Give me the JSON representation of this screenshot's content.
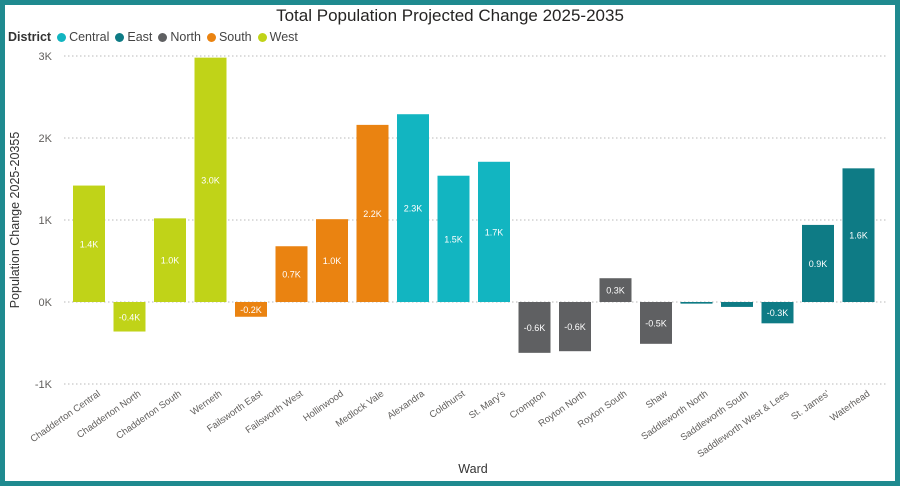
{
  "chart_data": {
    "type": "bar",
    "title": "Total Population Projected Change 2025-2035",
    "xlabel": "Ward",
    "ylabel": "Population Change 2025-20355",
    "ylim": [
      -1000,
      3000
    ],
    "yticks": [
      -1000,
      0,
      1000,
      2000,
      3000
    ],
    "ytick_labels": [
      "-1K",
      "0K",
      "1K",
      "2K",
      "3K"
    ],
    "grid": true,
    "legend": {
      "title": "District",
      "position": "top-left",
      "entries": [
        {
          "name": "Central",
          "color": "#12b5c1"
        },
        {
          "name": "East",
          "color": "#0e7b85"
        },
        {
          "name": "North",
          "color": "#5f6062"
        },
        {
          "name": "South",
          "color": "#ea8311"
        },
        {
          "name": "West",
          "color": "#c0d318"
        }
      ]
    },
    "categories": [
      "Chadderton Central",
      "Chadderton North",
      "Chadderton South",
      "Werneth",
      "Failsworth East",
      "Failsworth West",
      "Hollinwood",
      "Medlock Vale",
      "Alexandra",
      "Coldhurst",
      "St. Mary's",
      "Crompton",
      "Royton North",
      "Royton South",
      "Shaw",
      "Saddleworth North",
      "Saddleworth South",
      "Saddleworth West & Lees",
      "St. James'",
      "Waterhead"
    ],
    "district": [
      "West",
      "West",
      "West",
      "West",
      "South",
      "South",
      "South",
      "South",
      "Central",
      "Central",
      "Central",
      "North",
      "North",
      "North",
      "North",
      "East",
      "East",
      "East",
      "East",
      "East"
    ],
    "values": [
      1420,
      -360,
      1020,
      2980,
      -180,
      680,
      1010,
      2160,
      2290,
      1540,
      1710,
      -620,
      -600,
      290,
      -510,
      -20,
      -60,
      -260,
      940,
      1630
    ],
    "data_labels": [
      "1.4K",
      "-0.4K",
      "1.0K",
      "3.0K",
      "-0.2K",
      "0.7K",
      "1.0K",
      "2.2K",
      "2.3K",
      "1.5K",
      "1.7K",
      "-0.6K",
      "-0.6K",
      "0.3K",
      "-0.5K",
      "",
      "",
      "-0.3K",
      "0.9K",
      "1.6K"
    ]
  }
}
